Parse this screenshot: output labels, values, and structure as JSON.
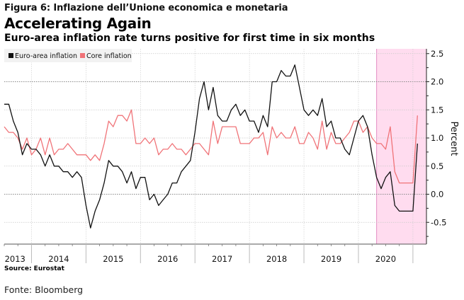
{
  "figure_caption": "Figura 6: Inflazione dell’Unione economica e monetaria",
  "footer": {
    "source": "Source:  Eurostat",
    "fonte": "Fonte: Bloomberg"
  },
  "chart_data": {
    "type": "line",
    "title": "Accelerating Again",
    "subtitle": "Euro-area inflation rate turns positive for first time in six months",
    "xlabel": "",
    "ylabel": "Percent",
    "ylim": [
      -0.9,
      2.65
    ],
    "yticks": [
      2.5,
      2.0,
      1.5,
      1.0,
      0.5,
      0.0,
      -0.5
    ],
    "ytick_labels": [
      "2.5",
      "2.0",
      "1.5",
      "1.0",
      "0.5",
      "0.0",
      "-0.5"
    ],
    "y_axis_side": "right",
    "grid": true,
    "legend_position": "top-left",
    "x_tick_labels": [
      "2013",
      "2014",
      "2015",
      "2016",
      "2017",
      "2018",
      "2019",
      "2020"
    ],
    "x_start": "2013-06",
    "x_end": "2021-01",
    "frequency": "monthly",
    "highlight_region": {
      "start": "2020-04",
      "end": "2021-01",
      "color": "#ffdcef",
      "edge_color": "#e28fc4"
    },
    "series": [
      {
        "name": "Euro-area inflation",
        "color": "#111111",
        "values": [
          1.6,
          1.6,
          1.3,
          1.1,
          0.7,
          0.9,
          0.8,
          0.8,
          0.7,
          0.5,
          0.7,
          0.5,
          0.5,
          0.4,
          0.4,
          0.3,
          0.4,
          0.3,
          -0.2,
          -0.6,
          -0.3,
          -0.1,
          0.2,
          0.6,
          0.5,
          0.5,
          0.4,
          0.2,
          0.4,
          0.1,
          0.3,
          0.3,
          -0.1,
          0.0,
          -0.2,
          -0.1,
          0.0,
          0.2,
          0.2,
          0.4,
          0.5,
          0.6,
          1.1,
          1.7,
          2.0,
          1.5,
          1.9,
          1.4,
          1.3,
          1.3,
          1.5,
          1.6,
          1.4,
          1.5,
          1.3,
          1.3,
          1.1,
          1.4,
          1.2,
          2.0,
          2.0,
          2.2,
          2.1,
          2.1,
          2.3,
          1.9,
          1.5,
          1.4,
          1.5,
          1.4,
          1.7,
          1.2,
          1.3,
          1.0,
          1.0,
          0.8,
          0.7,
          1.0,
          1.3,
          1.4,
          1.2,
          0.7,
          0.3,
          0.1,
          0.3,
          0.4,
          -0.2,
          -0.3,
          -0.3,
          -0.3,
          -0.3,
          0.9
        ]
      },
      {
        "name": "Core inflation",
        "color": "#f07378",
        "values": [
          1.2,
          1.1,
          1.1,
          1.0,
          0.8,
          1.0,
          0.7,
          0.8,
          1.0,
          0.7,
          1.0,
          0.7,
          0.8,
          0.8,
          0.9,
          0.8,
          0.7,
          0.7,
          0.7,
          0.6,
          0.7,
          0.6,
          0.9,
          1.3,
          1.2,
          1.4,
          1.4,
          1.3,
          1.5,
          0.9,
          0.9,
          1.0,
          0.9,
          1.0,
          0.7,
          0.8,
          0.8,
          0.9,
          0.8,
          0.8,
          0.7,
          0.8,
          0.9,
          0.9,
          0.8,
          0.7,
          1.3,
          0.9,
          1.2,
          1.2,
          1.2,
          1.2,
          0.9,
          0.9,
          0.9,
          1.0,
          1.0,
          1.1,
          0.7,
          1.2,
          1.0,
          1.1,
          1.0,
          1.0,
          1.2,
          0.9,
          0.9,
          1.1,
          1.0,
          0.8,
          1.3,
          0.8,
          1.1,
          0.9,
          0.9,
          1.0,
          1.1,
          1.3,
          1.3,
          1.1,
          1.2,
          1.0,
          0.9,
          0.9,
          0.8,
          1.2,
          0.4,
          0.2,
          0.2,
          0.2,
          0.2,
          1.4
        ]
      }
    ]
  }
}
